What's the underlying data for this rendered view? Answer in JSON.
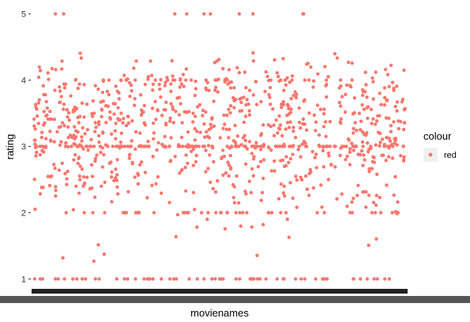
{
  "chart_data": {
    "type": "scatter",
    "title": "",
    "xlabel": "movienames",
    "ylabel": "rating",
    "ylim": [
      0.85,
      5.15
    ],
    "y_ticks": [
      1,
      2,
      3,
      4,
      5
    ],
    "y_tick_labels": [
      "1",
      "2",
      "3",
      "4",
      "5"
    ],
    "x_tick_labels": "overlapping movie names (illegible)",
    "point_count": 1100,
    "point_color": "#F8766D",
    "legend": {
      "title": "colour",
      "entries": [
        "red"
      ],
      "placement": "right"
    },
    "grid": false,
    "series": [
      {
        "name": "red",
        "color": "#F8766D",
        "note": "ratings spread between 1 and 5 with dense bands at 1, 2, 3, 4 and a few at 5"
      }
    ]
  }
}
